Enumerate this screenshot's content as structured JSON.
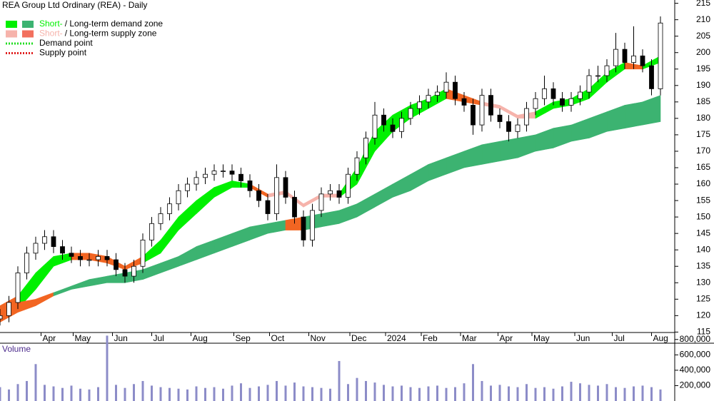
{
  "chart_data": [
    {
      "type": "candlestick",
      "title": "REA Group Ltd Ordinary (REA) - Daily",
      "legend": [
        {
          "short": "Short-",
          "rest": "/ Long-term demand zone",
          "colors": [
            "#00f000",
            "#3cb371"
          ]
        },
        {
          "short": "Short-",
          "rest": "/ Long-term supply zone",
          "colors": [
            "#f6b3ab",
            "#f2705e"
          ]
        },
        {
          "label": "Demand point",
          "color": "#22dd22"
        },
        {
          "label": "Supply point",
          "color": "#e02020"
        }
      ],
      "x": [
        0,
        5,
        10,
        15,
        20,
        25,
        30,
        35,
        40,
        45,
        50,
        55,
        60,
        65,
        70,
        75,
        80,
        85,
        90,
        95,
        100,
        105,
        110,
        115,
        120,
        125,
        130,
        135,
        140,
        145,
        150,
        155,
        160,
        165,
        170,
        175,
        180,
        185,
        190,
        195,
        200,
        205,
        210,
        215,
        220,
        225,
        230,
        235,
        240,
        245,
        250,
        255,
        260,
        265,
        270,
        275,
        280,
        285,
        290,
        295,
        300,
        305,
        310,
        315,
        320,
        325,
        330,
        335,
        340,
        345,
        350,
        355,
        360,
        365,
        370
      ],
      "open": [
        119,
        120,
        124,
        133,
        139,
        142,
        144,
        141,
        139,
        138,
        137,
        137,
        138,
        137,
        134,
        132,
        135,
        143,
        148,
        151,
        154,
        158,
        160,
        162,
        163,
        164,
        164,
        163,
        161,
        158,
        155,
        151,
        162,
        156,
        150,
        143,
        152,
        157,
        158,
        156,
        163,
        168,
        174,
        181,
        178,
        176,
        180,
        183,
        185,
        187,
        188,
        191,
        186,
        184,
        178,
        187,
        181,
        179,
        176,
        178,
        183,
        186,
        189,
        186,
        184,
        186,
        188,
        193,
        193,
        196,
        201,
        197,
        199,
        196,
        189
      ],
      "high": [
        122,
        126,
        135,
        141,
        144,
        146,
        146,
        143,
        141,
        140,
        139,
        140,
        140,
        139,
        136,
        137,
        145,
        150,
        153,
        156,
        160,
        162,
        164,
        165,
        166,
        166,
        166,
        165,
        163,
        160,
        157,
        166,
        164,
        158,
        152,
        154,
        159,
        160,
        160,
        165,
        170,
        176,
        185,
        183,
        180,
        182,
        185,
        187,
        189,
        190,
        194,
        193,
        188,
        186,
        189,
        189,
        183,
        181,
        180,
        185,
        188,
        193,
        191,
        188,
        188,
        190,
        195,
        196,
        198,
        206,
        203,
        208,
        201,
        198,
        211
      ],
      "low": [
        117,
        118,
        122,
        131,
        137,
        140,
        139,
        137,
        136,
        135,
        135,
        135,
        135,
        132,
        130,
        130,
        133,
        141,
        146,
        149,
        152,
        156,
        158,
        160,
        161,
        162,
        161,
        159,
        156,
        153,
        149,
        149,
        154,
        148,
        141,
        141,
        150,
        155,
        154,
        154,
        161,
        166,
        172,
        176,
        174,
        174,
        178,
        181,
        183,
        185,
        186,
        184,
        182,
        175,
        176,
        179,
        177,
        173,
        174,
        176,
        181,
        184,
        184,
        182,
        182,
        184,
        186,
        191,
        191,
        194,
        195,
        195,
        194,
        187,
        187
      ],
      "close": [
        120,
        124,
        133,
        139,
        142,
        144,
        141,
        139,
        138,
        137,
        137,
        138,
        137,
        134,
        132,
        135,
        143,
        148,
        151,
        154,
        158,
        160,
        162,
        163,
        164,
        164,
        163,
        161,
        158,
        155,
        151,
        162,
        156,
        150,
        143,
        152,
        157,
        158,
        156,
        163,
        168,
        174,
        181,
        178,
        176,
        180,
        183,
        185,
        187,
        188,
        191,
        186,
        184,
        178,
        187,
        181,
        179,
        176,
        178,
        183,
        186,
        189,
        186,
        184,
        186,
        188,
        193,
        193,
        196,
        201,
        197,
        199,
        196,
        189,
        209
      ],
      "zones": [
        {
          "x": [
            0,
            10,
            20,
            30,
            40,
            50,
            60,
            70,
            80,
            90,
            100,
            110,
            120,
            130,
            140,
            150,
            160,
            170,
            180,
            190,
            200,
            210,
            220,
            230,
            240,
            250,
            260,
            270,
            280,
            290,
            300,
            310,
            320,
            330,
            340,
            350,
            360,
            370
          ],
          "upper": [
            123,
            126,
            133,
            138,
            139,
            139,
            138,
            135,
            138,
            143,
            150,
            155,
            159,
            161,
            160,
            157,
            158,
            154,
            157,
            157,
            165,
            176,
            181,
            184,
            186,
            189,
            187,
            185,
            184,
            181,
            182,
            185,
            186,
            189,
            194,
            197,
            196,
            199
          ],
          "lower": [
            120,
            122,
            128,
            135,
            137,
            137,
            136,
            134,
            136,
            139,
            146,
            151,
            156,
            159,
            159,
            156,
            157,
            153,
            156,
            156,
            160,
            170,
            176,
            180,
            183,
            186,
            185,
            184,
            183,
            180,
            180,
            183,
            184,
            186,
            191,
            195,
            195,
            197
          ],
          "segment_colors": [
            "#f26522",
            "#00f000",
            "#00f000",
            "#00f000",
            "#f26522",
            "#f26522",
            "#f26522",
            "#f26522",
            "#00f000",
            "#00f000",
            "#00f000",
            "#00f000",
            "#00f000",
            "#00f000",
            "#f26522",
            "#f6b3ab",
            "#f6b3ab",
            "#f6b3ab",
            "#f6b3ab",
            "#00f000",
            "#00f000",
            "#00f000",
            "#00f000",
            "#00f000",
            "#00f000",
            "#f26522",
            "#f26522",
            "#f6b3ab",
            "#f6b3ab",
            "#f6b3ab",
            "#00f000",
            "#00f000",
            "#00f000",
            "#00f000",
            "#00f000",
            "#f26522",
            "#00f000"
          ]
        },
        {
          "x": [
            0,
            10,
            20,
            30,
            40,
            50,
            60,
            70,
            80,
            90,
            100,
            110,
            120,
            130,
            140,
            150,
            160,
            170,
            180,
            190,
            200,
            210,
            220,
            230,
            240,
            250,
            260,
            270,
            280,
            290,
            300,
            310,
            320,
            330,
            340,
            350,
            360,
            370
          ],
          "upper": [
            122,
            124,
            125,
            127,
            129,
            131,
            132,
            133,
            134,
            136,
            138,
            141,
            143,
            145,
            147,
            148,
            149,
            150,
            151,
            152,
            154,
            157,
            160,
            163,
            166,
            168,
            170,
            172,
            173,
            174,
            175,
            177,
            178,
            180,
            182,
            184,
            185,
            187
          ],
          "lower": [
            118,
            121,
            123,
            126,
            128,
            129,
            130,
            130,
            131,
            133,
            135,
            137,
            139,
            141,
            143,
            145,
            146,
            146,
            147,
            148,
            150,
            153,
            156,
            158,
            161,
            163,
            165,
            166,
            167,
            168,
            170,
            171,
            173,
            174,
            176,
            177,
            178,
            179
          ],
          "segment_colors": [
            "#f26522",
            "#f26522",
            "#f26522",
            "#3cb371",
            "#3cb371",
            "#3cb371",
            "#3cb371",
            "#3cb371",
            "#3cb371",
            "#3cb371",
            "#3cb371",
            "#3cb371",
            "#3cb371",
            "#3cb371",
            "#3cb371",
            "#3cb371",
            "#f26522",
            "#3cb371",
            "#3cb371",
            "#3cb371",
            "#3cb371",
            "#3cb371",
            "#3cb371",
            "#3cb371",
            "#3cb371",
            "#3cb371",
            "#3cb371",
            "#3cb371",
            "#3cb371",
            "#3cb371",
            "#3cb371",
            "#3cb371",
            "#3cb371",
            "#3cb371",
            "#3cb371",
            "#3cb371",
            "#3cb371"
          ]
        }
      ],
      "xlim": [
        0,
        378
      ],
      "xticks": [
        {
          "value": 23,
          "label": "Apr"
        },
        {
          "value": 41,
          "label": "May"
        },
        {
          "value": 63,
          "label": "Jun"
        },
        {
          "value": 85,
          "label": "Jul"
        },
        {
          "value": 107,
          "label": "Aug"
        },
        {
          "value": 131,
          "label": "Sep"
        },
        {
          "value": 151,
          "label": "Oct"
        },
        {
          "value": 173,
          "label": "Nov"
        },
        {
          "value": 196,
          "label": "Dec"
        },
        {
          "value": 216,
          "label": "2024"
        },
        {
          "value": 236,
          "label": "Feb"
        },
        {
          "value": 258,
          "label": "Mar"
        },
        {
          "value": 279,
          "label": "Apr"
        },
        {
          "value": 298,
          "label": "May"
        },
        {
          "value": 322,
          "label": "Jun"
        },
        {
          "value": 343,
          "label": "Jul"
        },
        {
          "value": 365,
          "label": "Aug"
        }
      ],
      "ylim": [
        114,
        216
      ],
      "yticks": [
        115,
        120,
        125,
        130,
        135,
        140,
        145,
        150,
        155,
        160,
        165,
        170,
        175,
        180,
        185,
        190,
        195,
        200,
        205,
        210,
        215
      ]
    },
    {
      "type": "bar",
      "title": "Volume",
      "color": "#8c8cc8",
      "x": [
        0,
        5,
        10,
        15,
        20,
        25,
        30,
        35,
        40,
        45,
        50,
        55,
        60,
        65,
        70,
        75,
        80,
        85,
        90,
        95,
        100,
        105,
        110,
        115,
        120,
        125,
        130,
        135,
        140,
        145,
        150,
        155,
        160,
        165,
        170,
        175,
        180,
        185,
        190,
        195,
        200,
        205,
        210,
        215,
        220,
        225,
        230,
        235,
        240,
        245,
        250,
        255,
        260,
        265,
        270,
        275,
        280,
        285,
        290,
        295,
        300,
        305,
        310,
        315,
        320,
        325,
        330,
        335,
        340,
        345,
        350,
        355,
        360,
        365,
        370
      ],
      "values": [
        180000,
        150000,
        220000,
        260000,
        480000,
        210000,
        190000,
        170000,
        200000,
        160000,
        150000,
        180000,
        850000,
        210000,
        170000,
        220000,
        260000,
        200000,
        180000,
        170000,
        160000,
        150000,
        190000,
        170000,
        180000,
        160000,
        200000,
        230000,
        170000,
        190000,
        210000,
        260000,
        200000,
        240000,
        190000,
        180000,
        170000,
        160000,
        520000,
        220000,
        300000,
        260000,
        240000,
        210000,
        190000,
        200000,
        180000,
        170000,
        190000,
        200000,
        170000,
        180000,
        230000,
        480000,
        260000,
        200000,
        210000,
        190000,
        180000,
        220000,
        170000,
        180000,
        160000,
        190000,
        250000,
        230000,
        210000,
        200000,
        220000,
        180000,
        170000,
        190000,
        200000,
        180000,
        150000
      ],
      "xlim": [
        0,
        378
      ],
      "ylim": [
        0,
        900000
      ],
      "yticks": [
        {
          "value": 200000,
          "label": "200,000"
        },
        {
          "value": 400000,
          "label": "400,000"
        },
        {
          "value": 600000,
          "label": "600,000"
        },
        {
          "value": 800000,
          "label": "800,000"
        }
      ]
    }
  ]
}
